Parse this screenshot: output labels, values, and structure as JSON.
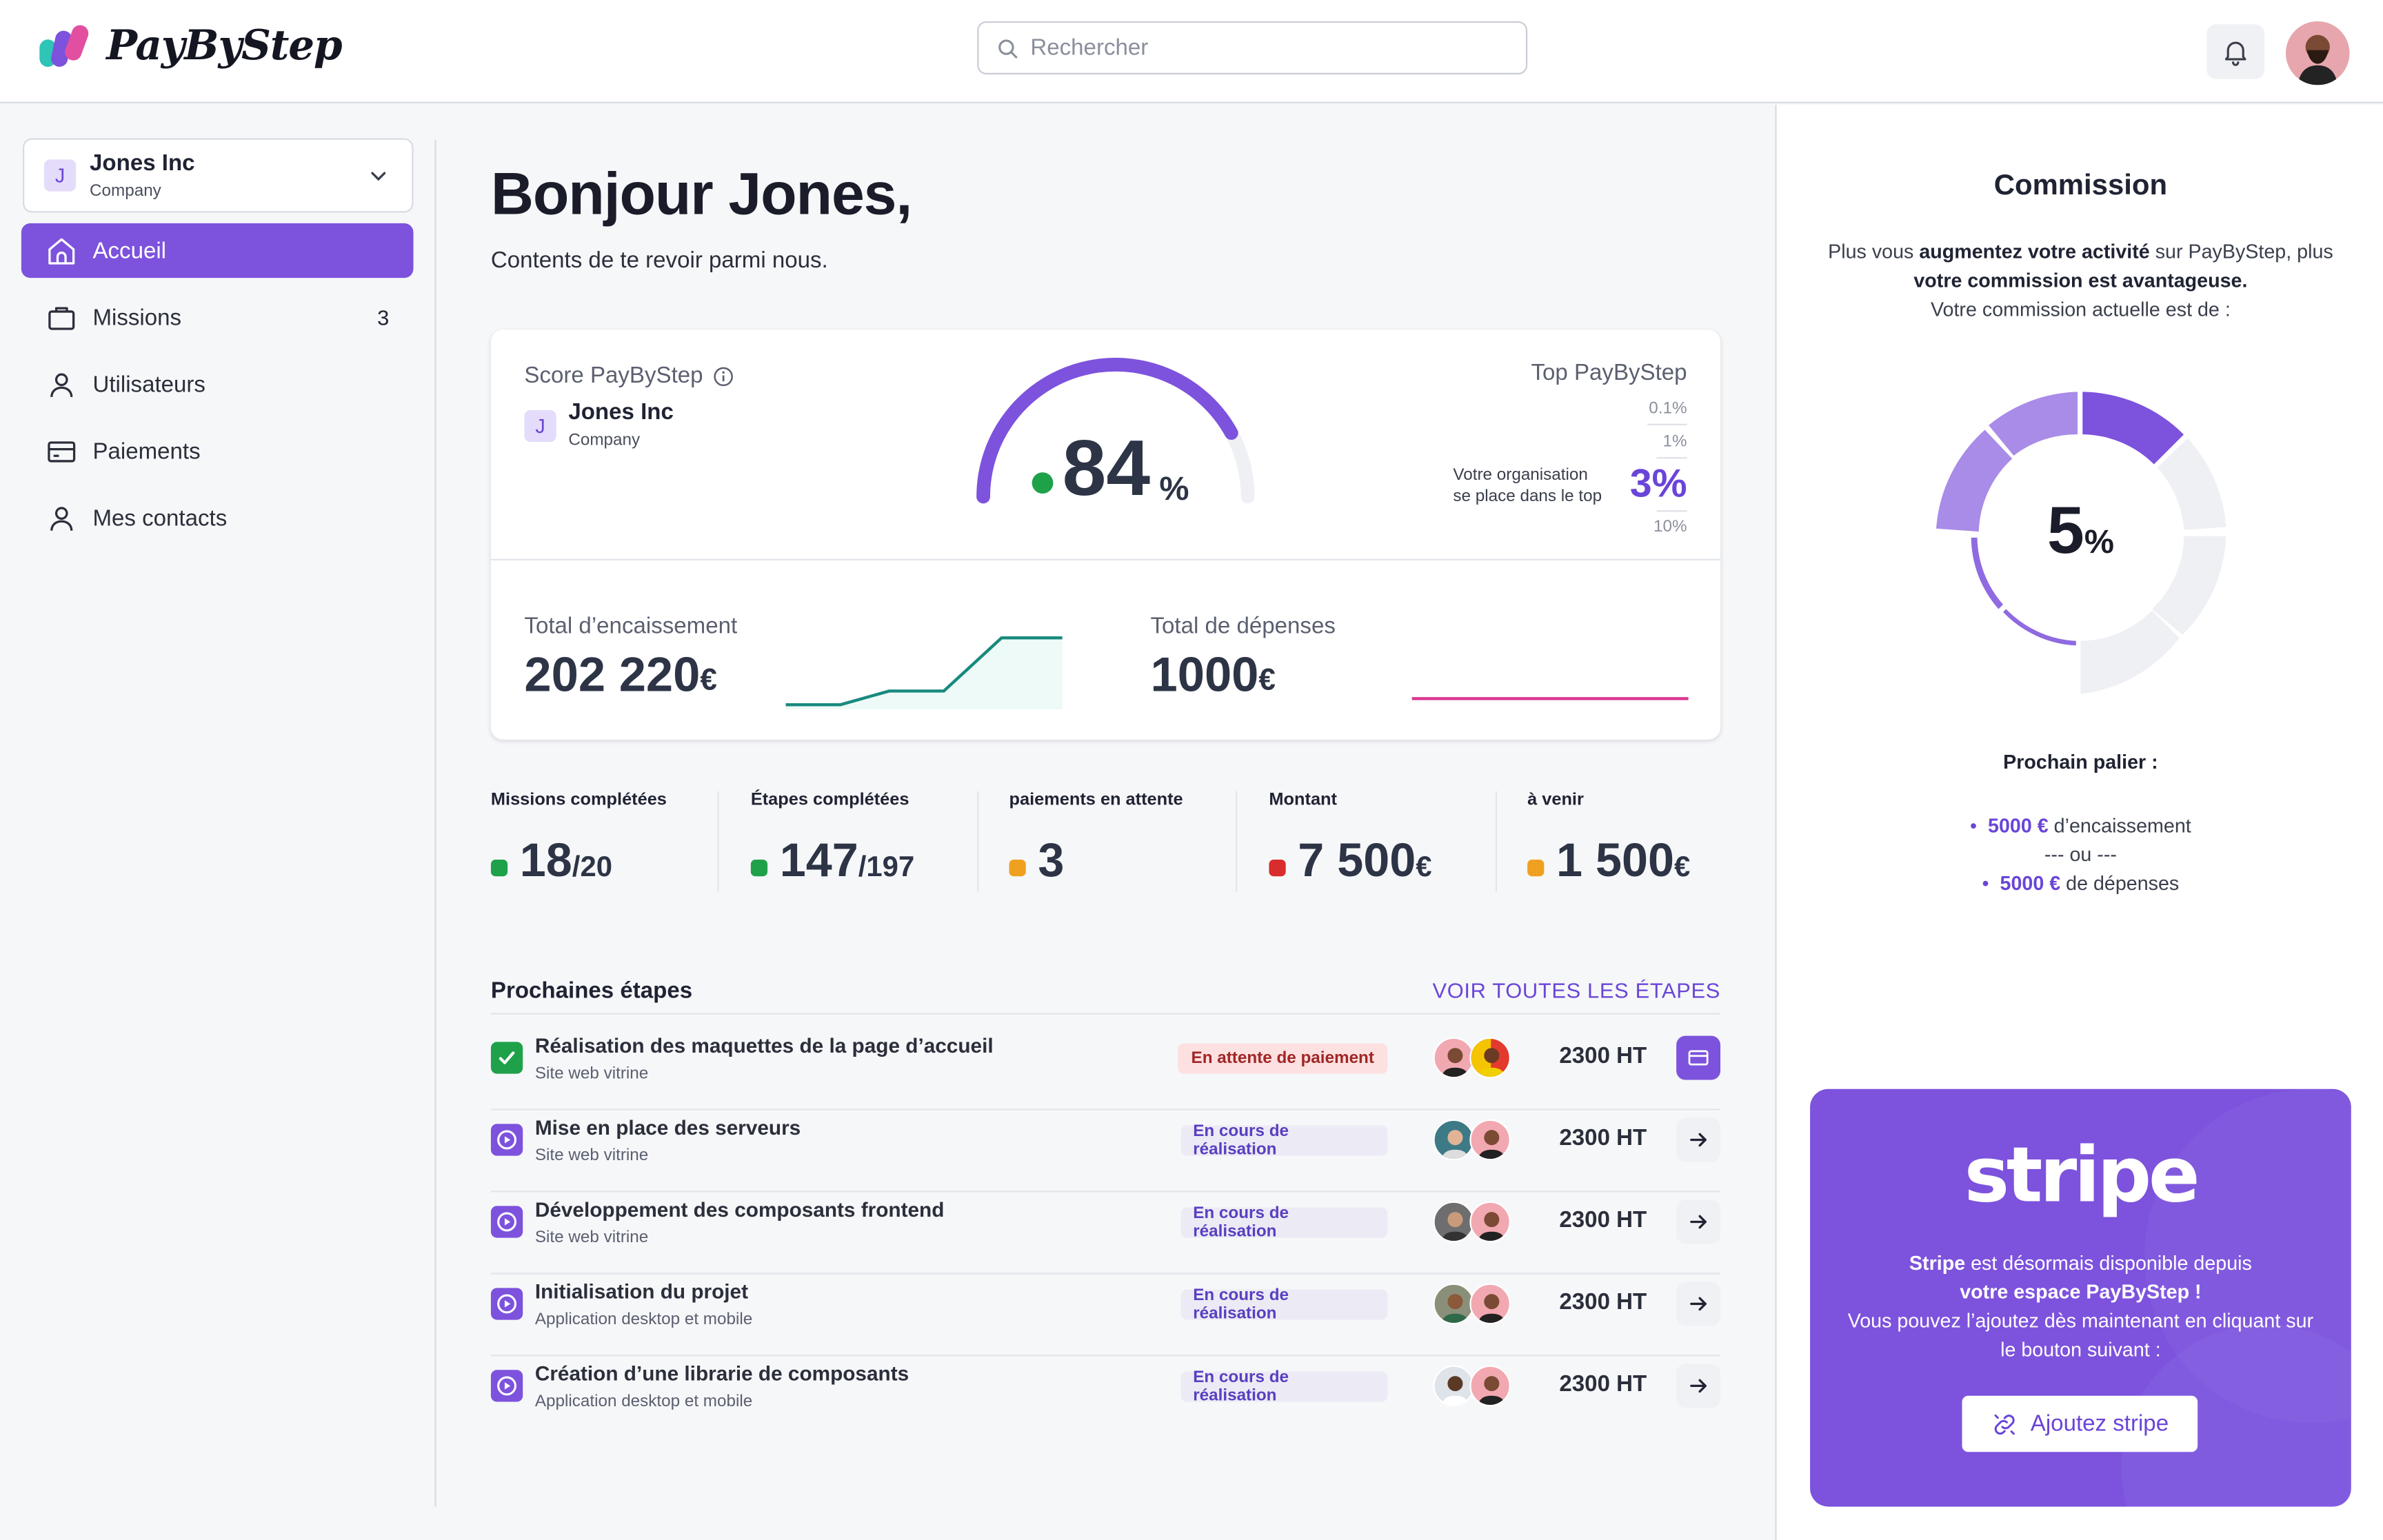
{
  "header": {
    "logo_text": "PayByStep",
    "search_placeholder": "Rechercher"
  },
  "sidebar": {
    "company": {
      "initial": "J",
      "name": "Jones Inc",
      "type": "Company"
    },
    "items": [
      {
        "label": "Accueil",
        "icon": "home-icon",
        "active": true
      },
      {
        "label": "Missions",
        "icon": "briefcase-icon",
        "count": "3"
      },
      {
        "label": "Utilisateurs",
        "icon": "user-icon"
      },
      {
        "label": "Paiements",
        "icon": "credit-card-icon"
      },
      {
        "label": "Mes contacts",
        "icon": "user-icon"
      }
    ]
  },
  "main": {
    "greeting": "Bonjour Jones,",
    "subgreeting": "Contents de te revoir parmi nous.",
    "score": {
      "label": "Score PayByStep",
      "company_initial": "J",
      "company_name": "Jones Inc",
      "company_type": "Company",
      "value": "84",
      "unit": "%",
      "gauge_fraction": 0.84,
      "top_label": "Top PayByStep",
      "tiers": [
        "0.1%",
        "1%",
        "10%"
      ],
      "top_text_line1": "Votre organisation",
      "top_text_line2": "se place dans le top",
      "top_value": "3%"
    },
    "income": {
      "label": "Total d’encaissement",
      "value": "202 220",
      "unit": "€"
    },
    "expenses": {
      "label": "Total de dépenses",
      "value": "1000",
      "unit": "€"
    },
    "stats": [
      {
        "label": "Missions complétées",
        "value": "18",
        "suffix": "/20",
        "color": "#1fa14a"
      },
      {
        "label": "Étapes complétées",
        "value": "147",
        "suffix": "/197",
        "color": "#1fa14a"
      },
      {
        "label": "paiements en attente",
        "value": "3",
        "suffix": "",
        "color": "#f0a020"
      },
      {
        "label": "Montant",
        "value": "7 500",
        "suffix": "€",
        "color": "#d92c2c"
      },
      {
        "label": "à venir",
        "value": "1 500",
        "suffix": "€",
        "color": "#f0a020"
      }
    ],
    "steps_title": "Prochaines étapes",
    "steps_link": "VOIR TOUTES LES ÉTAPES",
    "steps": [
      {
        "title": "Réalisation des maquettes de la page d’accueil",
        "sub": "Site web vitrine",
        "status": "En attente de paiement",
        "amount": "2300 HT",
        "done": true
      },
      {
        "title": "Mise en place des serveurs",
        "sub": "Site web vitrine",
        "status": "En cours de réalisation",
        "amount": "2300 HT"
      },
      {
        "title": "Développement des composants frontend",
        "sub": "Site web vitrine",
        "status": "En cours de réalisation",
        "amount": "2300 HT"
      },
      {
        "title": "Initialisation du projet",
        "sub": "Application desktop et mobile",
        "status": "En cours de réalisation",
        "amount": "2300 HT"
      },
      {
        "title": "Création d’une librarie de composants",
        "sub": "Application desktop et mobile",
        "status": "En cours de réalisation",
        "amount": "2300 HT"
      }
    ]
  },
  "commission": {
    "title": "Commission",
    "text_part1": "Plus vous ",
    "text_bold1": "augmentez votre activité",
    "text_part2": " sur PayByStep, plus ",
    "text_bold2": "votre commission est avantageuse.",
    "text_line3": "Votre commission actuelle est de :",
    "value": "5",
    "unit": "%",
    "next_title": "Prochain palier :",
    "next_amount1": "5000 €",
    "next_label1": " d’encaissement",
    "next_or": "--- ou ---",
    "next_amount2": "5000 €",
    "next_label2": " de dépenses"
  },
  "stripe": {
    "logo": "stripe",
    "bold1": "Stripe",
    "text1": " est désormais disponible depuis",
    "bold2": "votre espace PayByStep !",
    "text3": "Vous pouvez l’ajoutez dès maintenant en cliquant sur le bouton suivant :",
    "button": "Ajoutez stripe"
  },
  "colors": {
    "accent": "#7d52dd",
    "success": "#1fa14a",
    "warning": "#f0a020",
    "danger": "#d92c2c",
    "teal": "#178a7e",
    "pink": "#d8378f"
  }
}
